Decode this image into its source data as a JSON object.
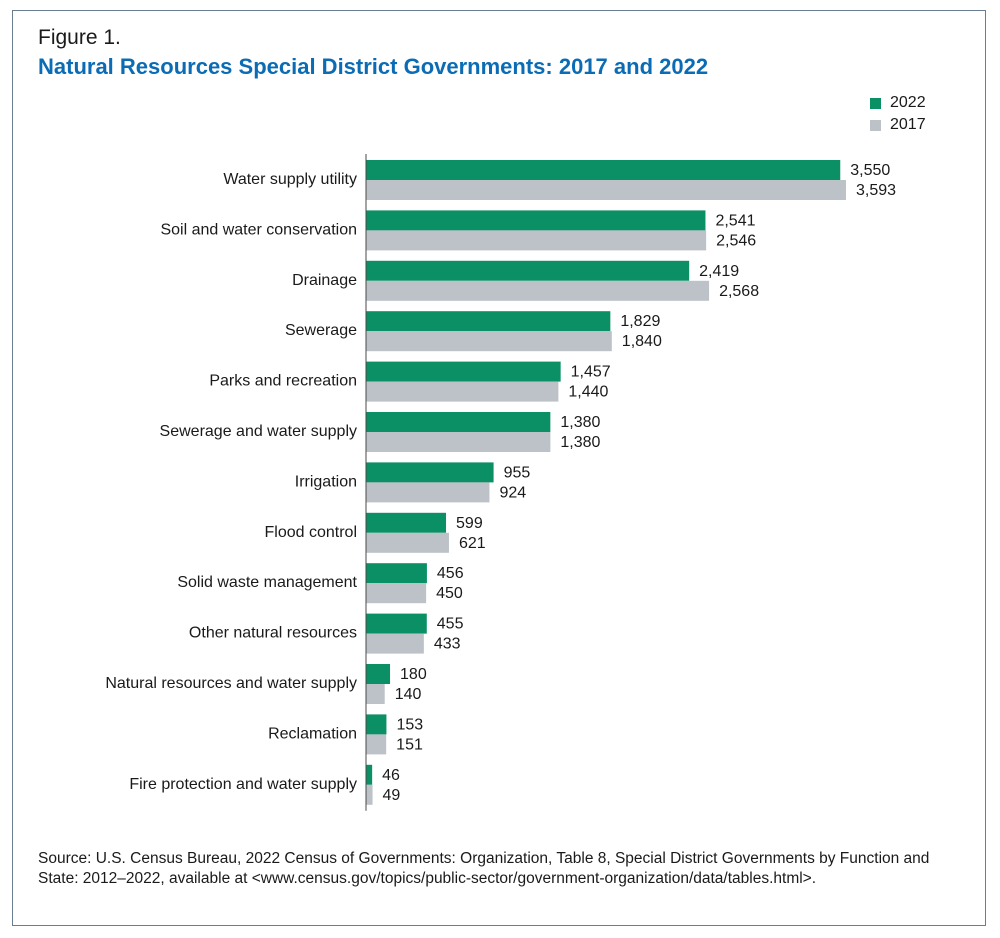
{
  "figure_label": "Figure 1.",
  "title": "Natural Resources Special District Governments: 2017 and 2022",
  "source": "Source: U.S. Census Bureau, 2022 Census of Governments: Organization, Table 8, Special District Governments by Function and State: 2012–2022, available at <www.census.gov/topics/public-sector/government-organization/data/tables.html>.",
  "colors": {
    "series_2022": "#0a9064",
    "series_2017": "#bcc2c8",
    "title": "#0b6cb5"
  },
  "chart_data": {
    "type": "bar",
    "orientation": "horizontal",
    "title": "Natural Resources Special District Governments: 2017 and 2022",
    "legend_position": "top-right",
    "grid": false,
    "categories": [
      "Water supply utility",
      "Soil and water conservation",
      "Drainage",
      "Sewerage",
      "Parks and recreation",
      "Sewerage and water supply",
      "Irrigation",
      "Flood control",
      "Solid waste management",
      "Other natural resources",
      "Natural resources and water supply",
      "Reclamation",
      "Fire protection and water supply"
    ],
    "series": [
      {
        "name": "2022",
        "color": "#0a9064",
        "values": [
          3550,
          2541,
          2419,
          1829,
          1457,
          1380,
          955,
          599,
          456,
          455,
          180,
          153,
          46
        ],
        "labels": [
          "3,550",
          "2,541",
          "2,419",
          "1,829",
          "1,457",
          "1,380",
          "955",
          "599",
          "456",
          "455",
          "180",
          "153",
          "46"
        ]
      },
      {
        "name": "2017",
        "color": "#bcc2c8",
        "values": [
          3593,
          2546,
          2568,
          1840,
          1440,
          1380,
          924,
          621,
          450,
          433,
          140,
          151,
          49
        ],
        "labels": [
          "3,593",
          "2,546",
          "2,568",
          "1,840",
          "1,440",
          "1,380",
          "924",
          "621",
          "450",
          "433",
          "140",
          "151",
          "49"
        ]
      }
    ],
    "xlim": [
      0,
      3593
    ]
  }
}
